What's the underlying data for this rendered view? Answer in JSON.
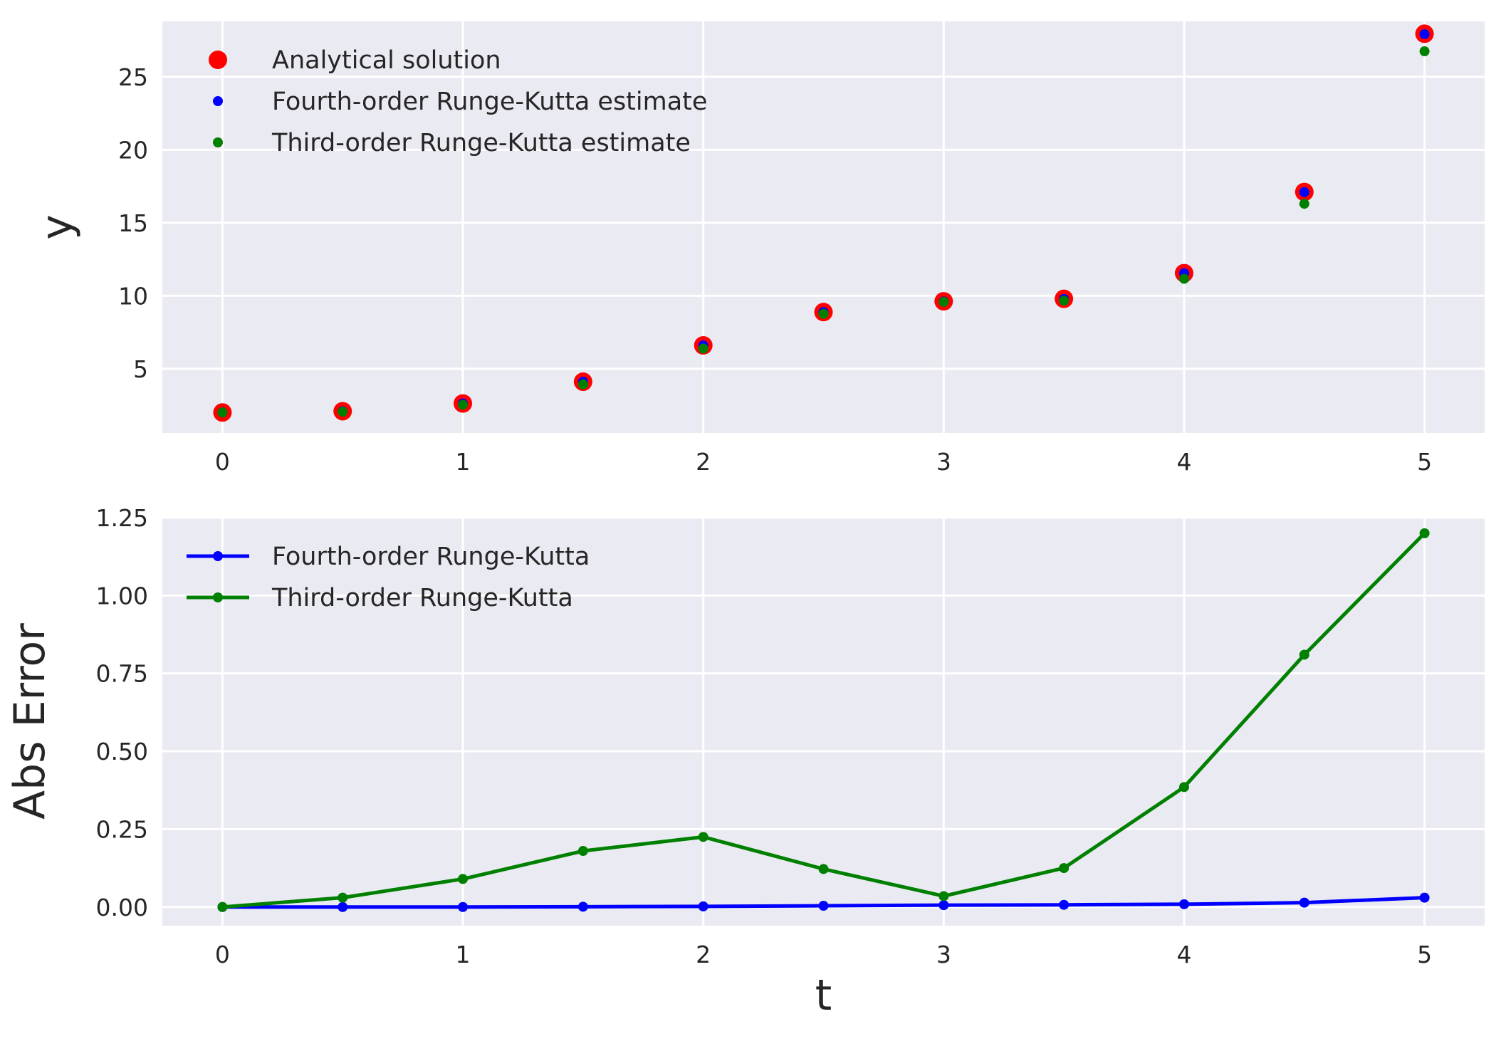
{
  "chart_data": [
    {
      "type": "scatter",
      "xlabel": "",
      "ylabel": "y",
      "xlim": [
        -0.25,
        5.25
      ],
      "ylim": [
        0.6,
        28.8
      ],
      "x_ticks": [
        0,
        1,
        2,
        3,
        4,
        5
      ],
      "y_ticks": [
        5,
        10,
        15,
        20,
        25
      ],
      "grid": true,
      "legend_position": "top-left",
      "x": [
        0,
        0.5,
        1,
        1.5,
        2,
        2.5,
        3,
        3.5,
        4,
        4.5,
        5
      ],
      "series": [
        {
          "name": "Analytical solution",
          "color": "#ff0000",
          "marker": "large-dot",
          "values": [
            2.0,
            2.09,
            2.62,
            4.11,
            6.6,
            8.88,
            9.62,
            9.79,
            11.55,
            17.11,
            27.95
          ]
        },
        {
          "name": "Fourth-order Runge-Kutta estimate",
          "color": "#0000ff",
          "marker": "small-dot",
          "values": [
            2.0,
            2.09,
            2.62,
            4.11,
            6.6,
            8.88,
            9.61,
            9.78,
            11.54,
            17.1,
            27.92
          ]
        },
        {
          "name": "Third-order Runge-Kutta estimate",
          "color": "#008000",
          "marker": "small-dot",
          "values": [
            2.0,
            2.06,
            2.53,
            3.93,
            6.38,
            8.76,
            9.58,
            9.66,
            11.16,
            16.3,
            26.75
          ]
        }
      ]
    },
    {
      "type": "line",
      "xlabel": "t",
      "ylabel": "Abs Error",
      "xlim": [
        -0.25,
        5.25
      ],
      "ylim": [
        -0.06,
        1.25
      ],
      "x_ticks": [
        0,
        1,
        2,
        3,
        4,
        5
      ],
      "y_ticks": [
        "0.00",
        "0.25",
        "0.50",
        "0.75",
        "1.00",
        "1.25"
      ],
      "grid": true,
      "legend_position": "top-left",
      "x": [
        0,
        0.5,
        1,
        1.5,
        2,
        2.5,
        3,
        3.5,
        4,
        4.5,
        5
      ],
      "series": [
        {
          "name": "Fourth-order Runge-Kutta",
          "color": "#0000ff",
          "values": [
            0.0,
            0.0,
            0.0,
            0.001,
            0.002,
            0.004,
            0.006,
            0.007,
            0.009,
            0.014,
            0.03
          ]
        },
        {
          "name": "Third-order Runge-Kutta",
          "color": "#008000",
          "values": [
            0.0,
            0.03,
            0.09,
            0.18,
            0.225,
            0.122,
            0.035,
            0.125,
            0.385,
            0.81,
            1.2
          ]
        }
      ]
    }
  ]
}
